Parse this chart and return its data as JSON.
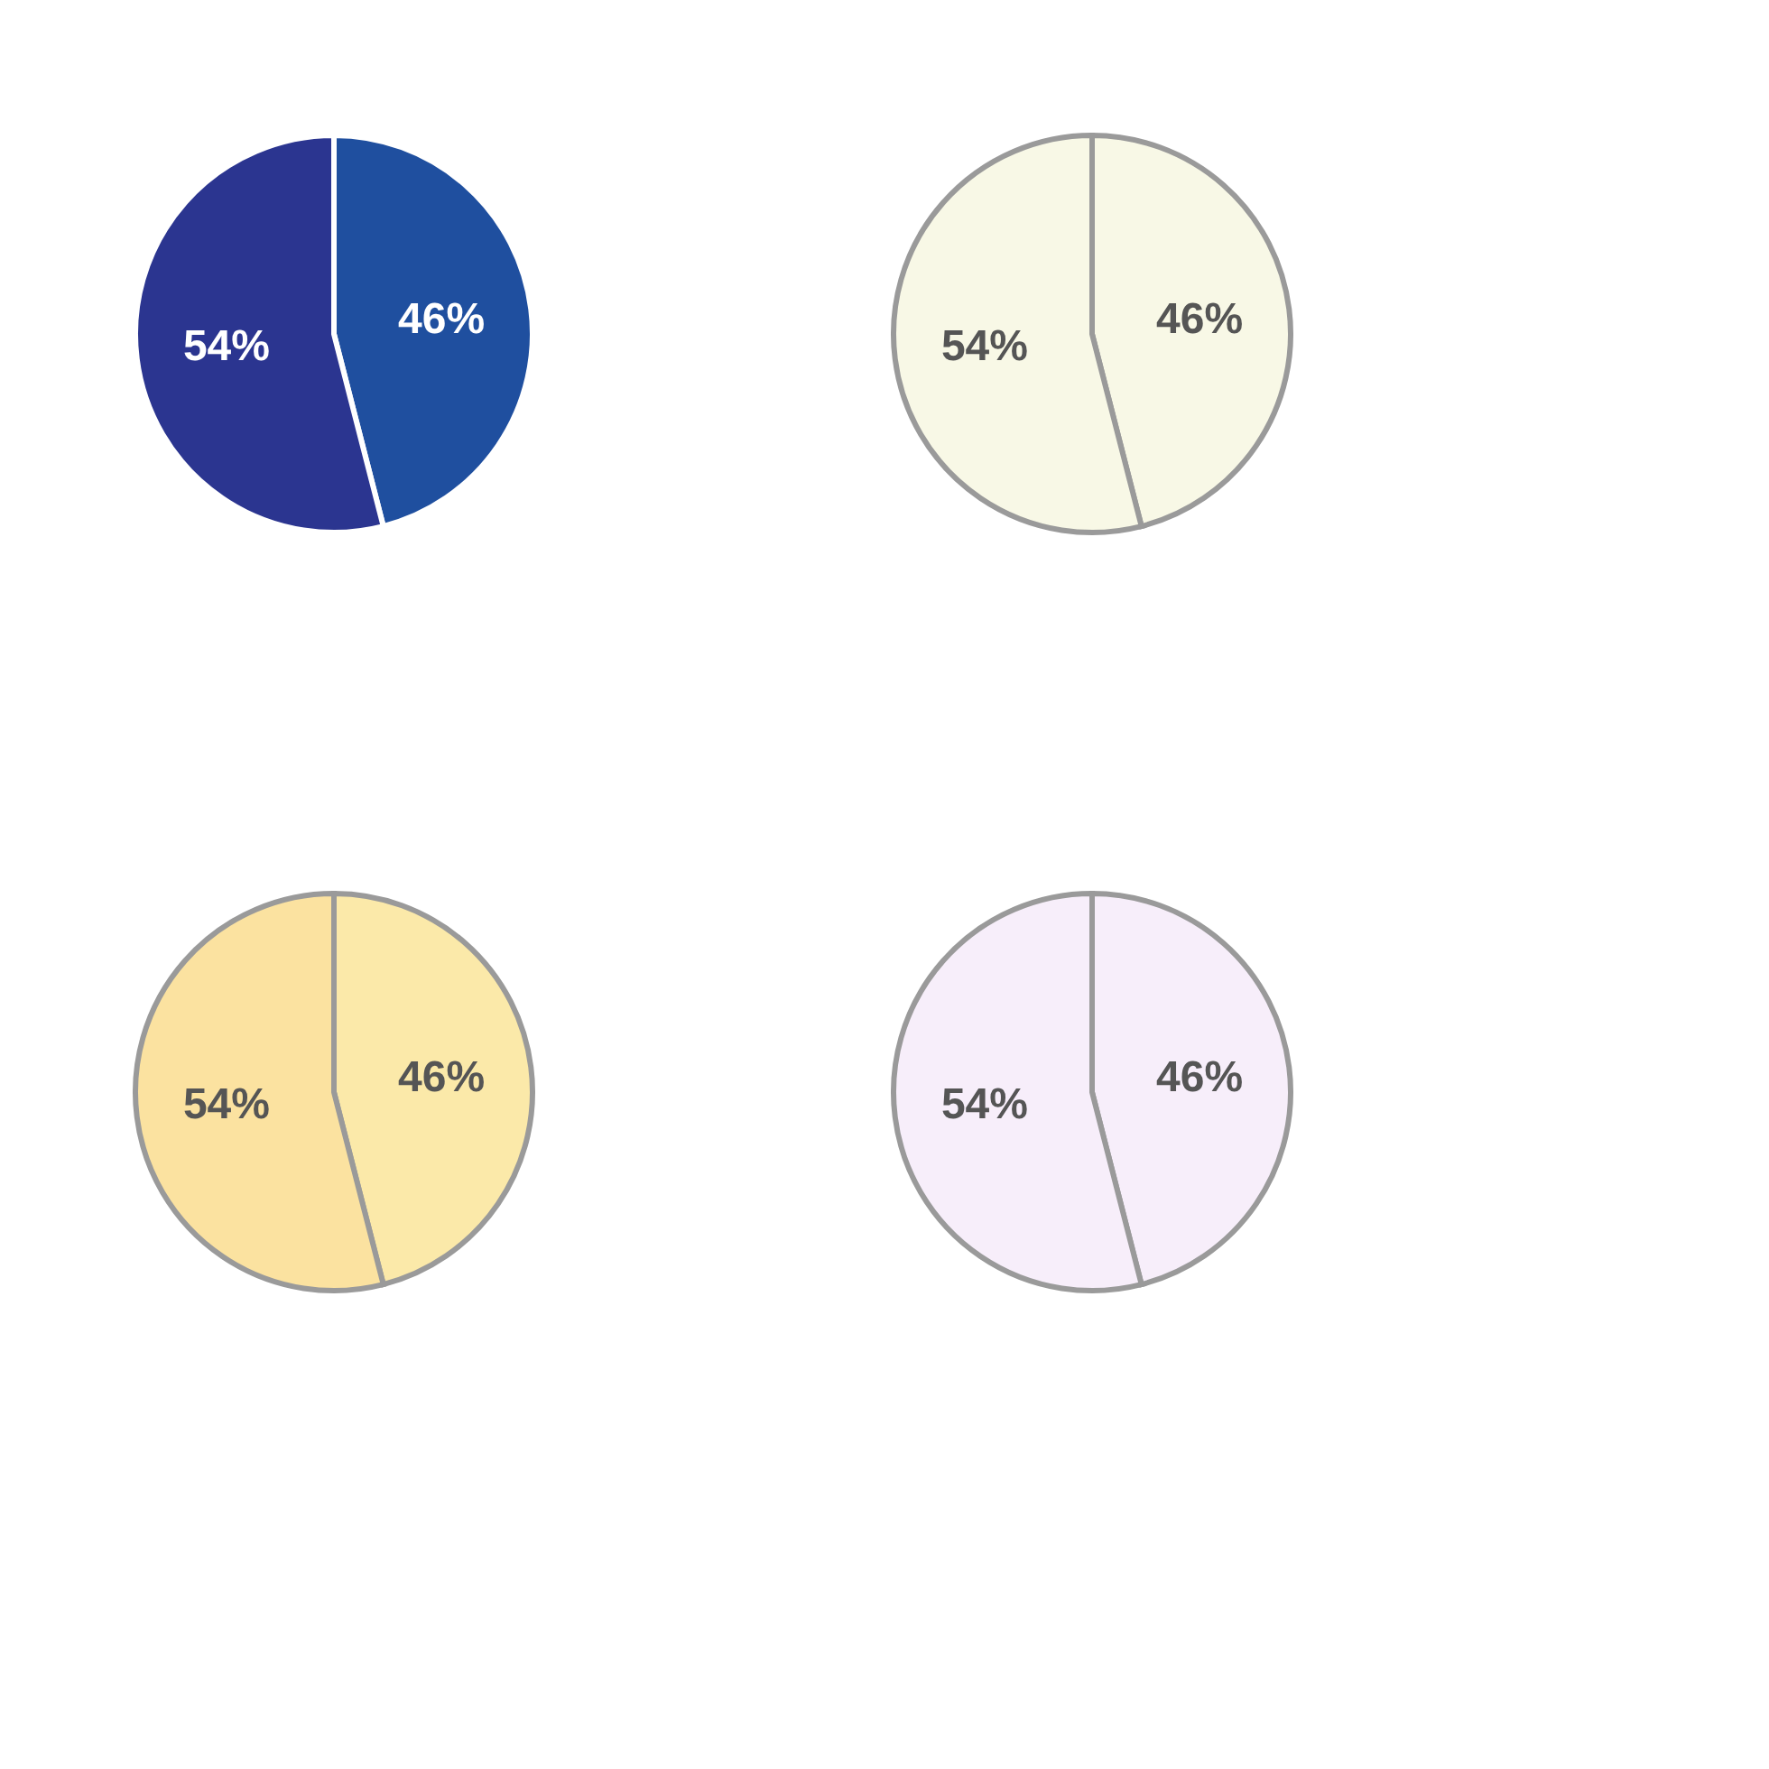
{
  "chart_data": [
    {
      "type": "pie",
      "categories": [
        null,
        null
      ],
      "values": [
        46,
        54
      ],
      "value_labels": [
        "46%",
        "54%"
      ],
      "colors": [
        "#1f4f9f",
        "#2b3590"
      ]
    },
    {
      "type": "pie",
      "categories": [
        null,
        null
      ],
      "values": [
        46,
        54
      ],
      "value_labels": [
        "46%",
        "54%"
      ],
      "colors": [
        "#f8f8e6",
        "#f8f8e6"
      ]
    },
    {
      "type": "pie",
      "categories": [
        null,
        null
      ],
      "values": [
        46,
        54
      ],
      "value_labels": [
        "46%",
        "54%"
      ],
      "colors": [
        "#fbe9a9",
        "#fbe2a0"
      ]
    },
    {
      "type": "pie",
      "categories": [
        null,
        null
      ],
      "values": [
        46,
        54
      ],
      "value_labels": [
        "46%",
        "54%"
      ],
      "colors": [
        "#f7eefa",
        "#f7eefa"
      ]
    }
  ]
}
